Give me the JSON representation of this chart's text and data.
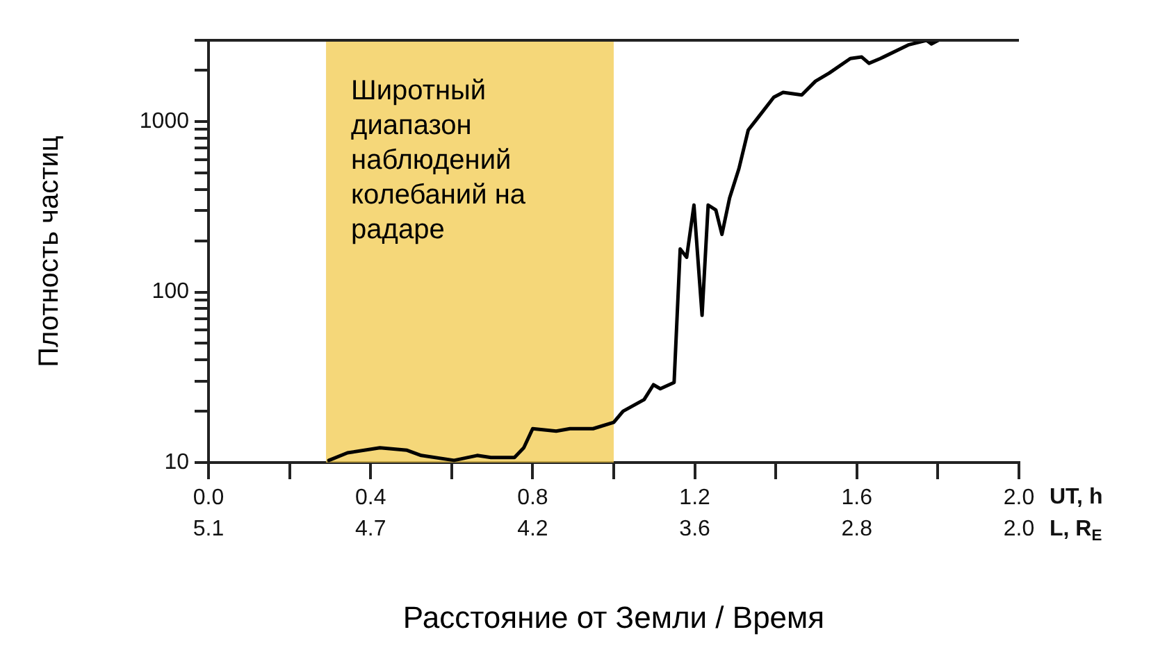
{
  "chart_data": {
    "type": "line",
    "xlabel": "Расстояние от Земли / Время",
    "ylabel": "Плотность частиц",
    "annotations": [
      "UT, h",
      "L, R$_{E}$",
      "5.1",
      "4.7",
      "4.2",
      "3.6",
      "2.8",
      "2.0"
    ],
    "log": "y",
    "grid": false,
    "legend": false,
    "marker": "none",
    "line_style": "solid",
    "x": [
      0.297,
      0.343,
      0.423,
      0.49,
      0.525,
      0.606,
      0.663,
      0.697,
      0.755,
      0.778,
      0.8,
      0.858,
      0.892,
      0.949,
      1.0,
      1.023,
      1.075,
      1.098,
      1.115,
      1.149,
      1.164,
      1.18,
      1.198,
      1.218,
      1.233,
      1.252,
      1.267,
      1.286,
      1.309,
      1.332,
      1.355,
      1.395,
      1.418,
      1.464,
      1.498,
      1.532,
      1.584,
      1.612,
      1.63,
      1.658,
      1.727,
      1.772,
      1.784,
      1.801
    ],
    "series": [
      {
        "color": "#000000",
        "values": [
          10.3,
          11.4,
          12.2,
          11.8,
          11,
          10.3,
          11,
          10.7,
          10.7,
          12.2,
          15.8,
          15.3,
          15.8,
          15.8,
          17.2,
          20,
          23.4,
          28.6,
          27.1,
          29.5,
          179,
          160,
          324,
          73,
          324,
          303,
          218,
          357,
          530,
          893,
          1048,
          1389,
          1484,
          1432,
          1727,
          1928,
          2345,
          2393,
          2198,
          2345,
          2819,
          3000,
          2858,
          3000
        ]
      }
    ],
    "xlim": [
      0,
      2
    ],
    "xticks": [
      {
        "value": 0,
        "label": "0.0"
      },
      {
        "value": 0.2,
        "label": null
      },
      0.4,
      {
        "value": 0.6,
        "label": null
      },
      0.8,
      {
        "value": 1.0,
        "label": null
      },
      1.2,
      {
        "value": 1.4,
        "label": null
      },
      1.6,
      {
        "value": 1.8,
        "label": null
      },
      {
        "value": 2,
        "label": "2.0"
      }
    ],
    "ylim": [
      10,
      3000
    ],
    "yticks": [
      10,
      {
        "value": 20,
        "label": null
      },
      {
        "value": 30,
        "label": null
      },
      {
        "value": 40,
        "label": null
      },
      {
        "value": 50,
        "label": null
      },
      {
        "value": 60,
        "label": null
      },
      {
        "value": 70,
        "label": null
      },
      {
        "value": 80,
        "label": null
      },
      {
        "value": 90,
        "label": null
      },
      100,
      {
        "value": 200,
        "label": null
      },
      {
        "value": 300,
        "label": null
      },
      {
        "value": 400,
        "label": null
      },
      {
        "value": 500,
        "label": null
      },
      {
        "value": 600,
        "label": null
      },
      {
        "value": 700,
        "label": null
      },
      {
        "value": 800,
        "label": null
      },
      {
        "value": 900,
        "label": null
      },
      1000,
      {
        "value": 2000,
        "label": null
      },
      {
        "value": 3000,
        "label": null
      }
    ],
    "bands": [
      {
        "axis": "x",
        "from": 0.29,
        "to": 1.0,
        "label": "Широтный диапазон наблюдений колебаний на радаре",
        "color": "#f2c94c"
      }
    ]
  }
}
